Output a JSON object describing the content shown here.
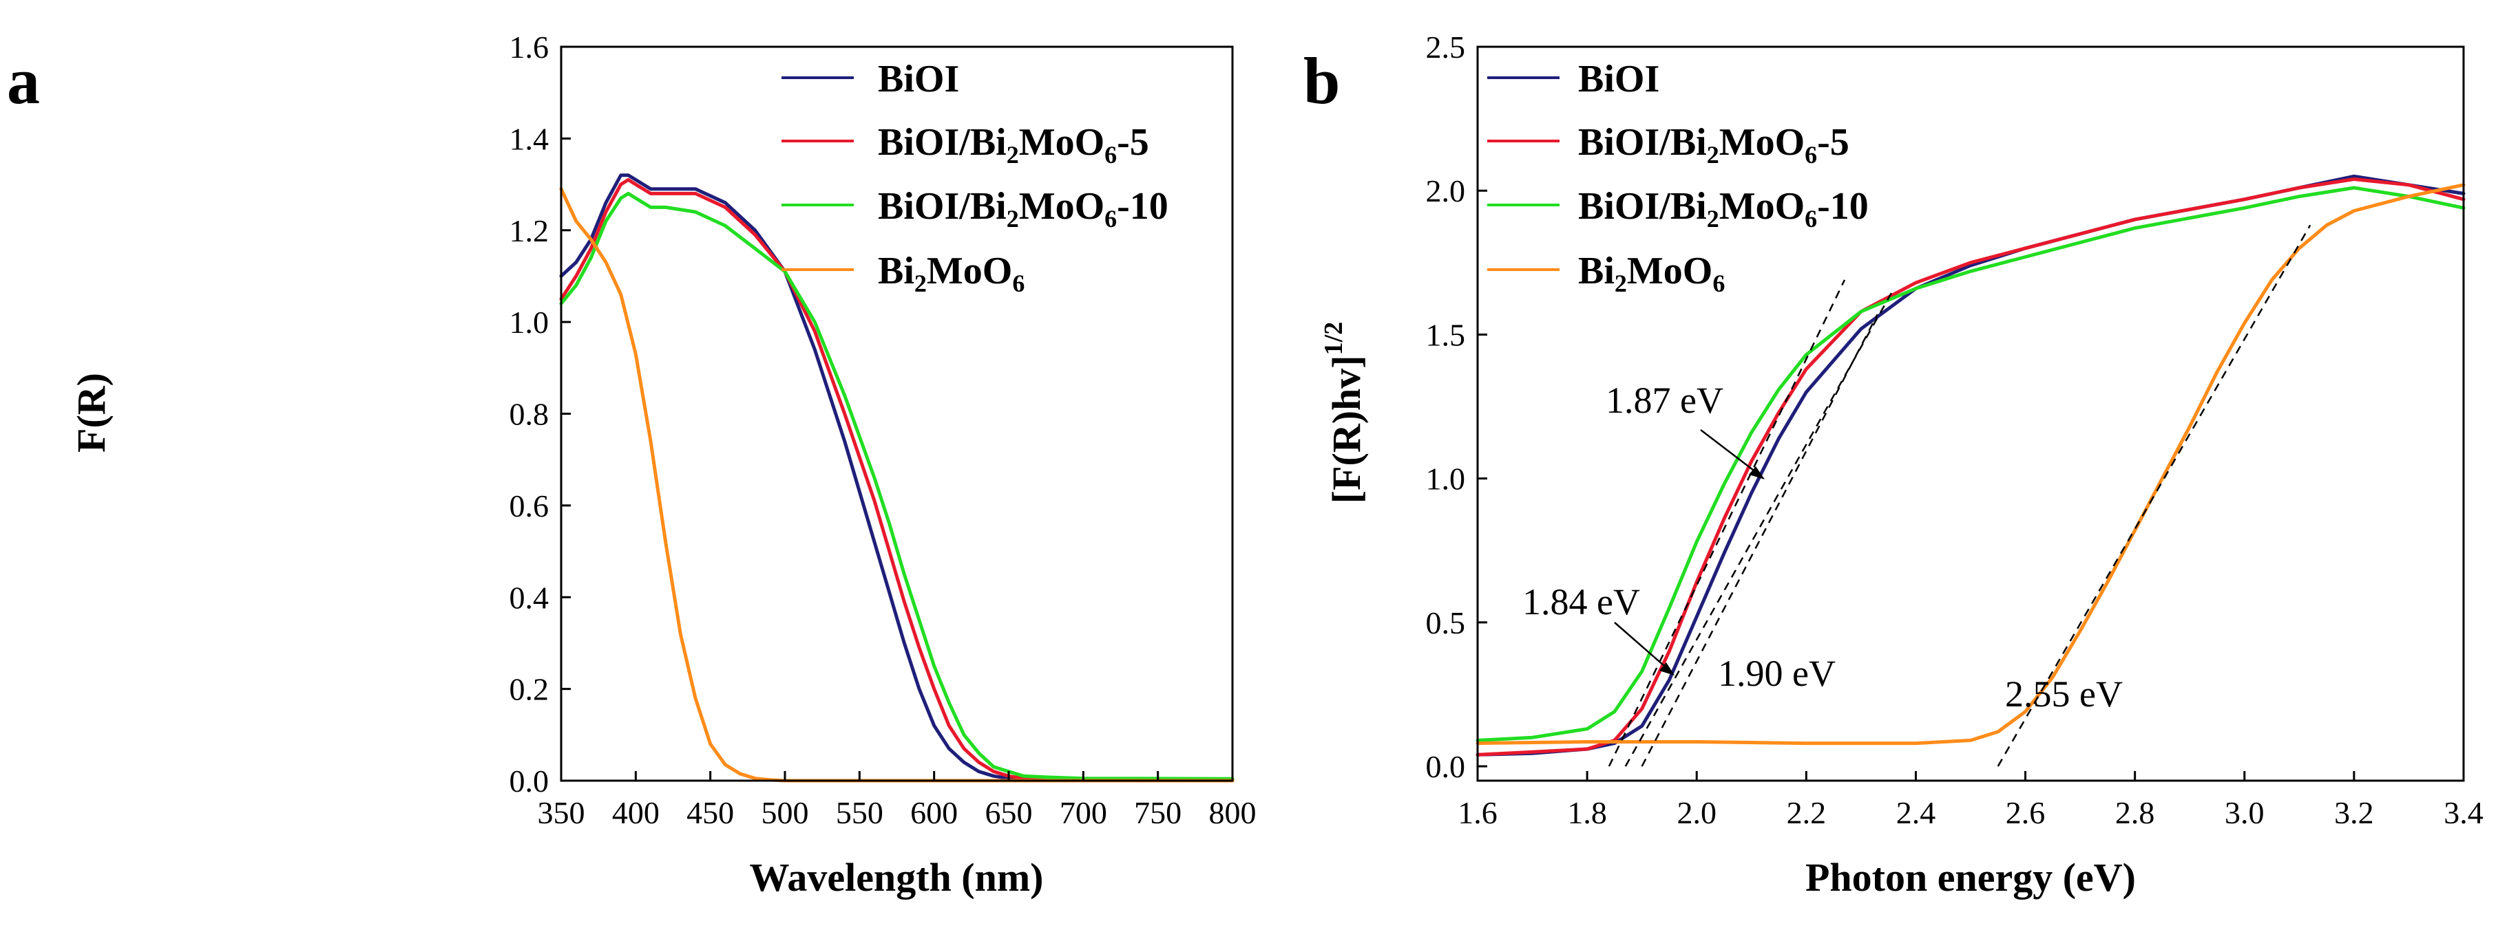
{
  "chart_data": [
    {
      "panel": "a",
      "type": "line",
      "title": "",
      "xlabel": "Wavelength (nm)",
      "ylabel": "F(R)",
      "xlim": [
        350,
        800
      ],
      "ylim": [
        0,
        1.6
      ],
      "xticks": [
        "350",
        "400",
        "450",
        "500",
        "550",
        "600",
        "650",
        "700",
        "750",
        "800"
      ],
      "yticks": [
        "0.0",
        "0.2",
        "0.4",
        "0.6",
        "0.8",
        "1.0",
        "1.2",
        "1.4",
        "1.6"
      ],
      "legend_position": "top-right",
      "series": [
        {
          "name": "BiOI",
          "color": "#1f1f7a",
          "x": [
            350,
            360,
            370,
            380,
            390,
            395,
            400,
            410,
            420,
            440,
            460,
            480,
            500,
            520,
            540,
            560,
            570,
            580,
            590,
            600,
            610,
            620,
            630,
            640,
            650,
            660,
            700,
            800
          ],
          "y": [
            1.1,
            1.13,
            1.18,
            1.26,
            1.32,
            1.32,
            1.31,
            1.29,
            1.29,
            1.29,
            1.26,
            1.2,
            1.11,
            0.94,
            0.74,
            0.52,
            0.41,
            0.3,
            0.2,
            0.12,
            0.07,
            0.04,
            0.02,
            0.01,
            0.005,
            0.003,
            0.002,
            0.002
          ]
        },
        {
          "name": "BiOI/Bi₂MoO₆-5",
          "color": "#e8192c",
          "x": [
            350,
            360,
            370,
            380,
            390,
            395,
            400,
            410,
            420,
            440,
            460,
            480,
            500,
            520,
            540,
            560,
            570,
            580,
            590,
            600,
            610,
            620,
            630,
            640,
            650,
            660,
            700,
            800
          ],
          "y": [
            1.05,
            1.1,
            1.16,
            1.24,
            1.3,
            1.31,
            1.3,
            1.28,
            1.28,
            1.28,
            1.25,
            1.19,
            1.11,
            0.98,
            0.8,
            0.61,
            0.5,
            0.39,
            0.29,
            0.2,
            0.12,
            0.07,
            0.04,
            0.02,
            0.01,
            0.005,
            0.003,
            0.002
          ]
        },
        {
          "name": "BiOI/Bi₂MoO₆-10",
          "color": "#22dd22",
          "x": [
            350,
            360,
            370,
            380,
            390,
            395,
            400,
            410,
            420,
            440,
            460,
            480,
            500,
            520,
            540,
            560,
            570,
            580,
            590,
            600,
            610,
            620,
            630,
            640,
            650,
            660,
            680,
            700,
            800
          ],
          "y": [
            1.04,
            1.08,
            1.14,
            1.22,
            1.27,
            1.28,
            1.27,
            1.25,
            1.25,
            1.24,
            1.21,
            1.16,
            1.11,
            1.0,
            0.84,
            0.66,
            0.56,
            0.45,
            0.35,
            0.25,
            0.17,
            0.1,
            0.06,
            0.03,
            0.02,
            0.01,
            0.007,
            0.005,
            0.004
          ]
        },
        {
          "name": "Bi₂MoO₆",
          "color": "#ff8c1a",
          "x": [
            350,
            360,
            370,
            380,
            390,
            400,
            410,
            420,
            430,
            440,
            450,
            460,
            470,
            480,
            490,
            500,
            550,
            600,
            700,
            800
          ],
          "y": [
            1.29,
            1.22,
            1.18,
            1.13,
            1.06,
            0.93,
            0.74,
            0.52,
            0.32,
            0.18,
            0.08,
            0.035,
            0.015,
            0.005,
            0.002,
            0.0,
            0.0,
            0.0,
            0.0,
            0.0
          ]
        }
      ],
      "legend": [
        "BiOI",
        "BiOI/Bi2MoO6-5",
        "BiOI/Bi2MoO6-10",
        "Bi2MoO6"
      ]
    },
    {
      "panel": "b",
      "type": "line",
      "title": "",
      "xlabel": "Photon energy (eV)",
      "ylabel": "[F(R)hv]^1/2",
      "xlim": [
        1.6,
        3.4
      ],
      "ylim": [
        -0.05,
        2.5
      ],
      "xticks": [
        "1.6",
        "1.8",
        "2.0",
        "2.2",
        "2.4",
        "2.6",
        "2.8",
        "3.0",
        "3.2",
        "3.4"
      ],
      "yticks": [
        "0.0",
        "0.5",
        "1.0",
        "1.5",
        "2.0",
        "2.5"
      ],
      "legend_position": "top-left",
      "series": [
        {
          "name": "BiOI",
          "color": "#1f1f7a",
          "x": [
            1.6,
            1.7,
            1.8,
            1.85,
            1.9,
            1.95,
            2.0,
            2.05,
            2.1,
            2.15,
            2.2,
            2.3,
            2.4,
            2.5,
            2.6,
            2.8,
            3.0,
            3.1,
            3.2,
            3.3,
            3.4
          ],
          "y": [
            0.04,
            0.045,
            0.06,
            0.08,
            0.14,
            0.3,
            0.52,
            0.74,
            0.95,
            1.14,
            1.3,
            1.52,
            1.66,
            1.74,
            1.8,
            1.9,
            1.97,
            2.01,
            2.05,
            2.02,
            1.99
          ]
        },
        {
          "name": "BiOI/Bi₂MoO₆-5",
          "color": "#e8192c",
          "x": [
            1.6,
            1.7,
            1.8,
            1.85,
            1.9,
            1.95,
            2.0,
            2.05,
            2.1,
            2.15,
            2.2,
            2.3,
            2.4,
            2.5,
            2.6,
            2.8,
            3.0,
            3.1,
            3.2,
            3.3,
            3.4
          ],
          "y": [
            0.04,
            0.05,
            0.06,
            0.09,
            0.2,
            0.4,
            0.64,
            0.86,
            1.06,
            1.23,
            1.38,
            1.58,
            1.68,
            1.75,
            1.8,
            1.9,
            1.97,
            2.01,
            2.04,
            2.02,
            1.97
          ]
        },
        {
          "name": "BiOI/Bi₂MoO₆-10",
          "color": "#22dd22",
          "x": [
            1.6,
            1.7,
            1.8,
            1.85,
            1.9,
            1.95,
            2.0,
            2.05,
            2.1,
            2.15,
            2.2,
            2.3,
            2.4,
            2.5,
            2.6,
            2.8,
            3.0,
            3.1,
            3.2,
            3.3,
            3.4
          ],
          "y": [
            0.09,
            0.1,
            0.13,
            0.19,
            0.33,
            0.55,
            0.78,
            0.98,
            1.16,
            1.31,
            1.43,
            1.58,
            1.66,
            1.72,
            1.77,
            1.87,
            1.94,
            1.98,
            2.01,
            1.98,
            1.94
          ]
        },
        {
          "name": "Bi₂MoO₆",
          "color": "#ff8c1a",
          "x": [
            1.6,
            1.8,
            2.0,
            2.2,
            2.4,
            2.5,
            2.55,
            2.6,
            2.65,
            2.7,
            2.75,
            2.8,
            2.85,
            2.9,
            2.95,
            3.0,
            3.05,
            3.1,
            3.15,
            3.2,
            3.3,
            3.4
          ],
          "y": [
            0.08,
            0.085,
            0.085,
            0.08,
            0.08,
            0.09,
            0.12,
            0.19,
            0.31,
            0.47,
            0.64,
            0.82,
            1.0,
            1.18,
            1.37,
            1.54,
            1.69,
            1.8,
            1.88,
            1.93,
            1.98,
            2.02
          ]
        }
      ],
      "tangents": [
        {
          "x": [
            1.84,
            2.27
          ],
          "y": [
            0.0,
            1.69
          ]
        },
        {
          "x": [
            1.87,
            2.36
          ],
          "y": [
            0.0,
            1.66
          ]
        },
        {
          "x": [
            1.9,
            2.33
          ],
          "y": [
            0.0,
            1.57
          ]
        },
        {
          "x": [
            2.55,
            3.12
          ],
          "y": [
            0.0,
            1.88
          ]
        }
      ],
      "annotations": [
        {
          "text": "1.87 eV",
          "x": 2.08,
          "y": 1.18
        },
        {
          "text": "1.84 eV",
          "x": 1.69,
          "y": 0.56
        },
        {
          "text": "1.90 eV",
          "x": 1.97,
          "y": 0.29
        },
        {
          "text": "2.55 eV",
          "x": 2.68,
          "y": 0.21
        }
      ],
      "legend": [
        "BiOI",
        "BiOI/Bi2MoO6-5",
        "BiOI/Bi2MoO6-10",
        "Bi2MoO6"
      ]
    }
  ],
  "labels": {
    "panel_a": "a",
    "panel_b": "b",
    "sub2": "2",
    "sub6": "6",
    "bi": "Bi",
    "biOI": "BiOI",
    "biOI_bi": "BiOI/Bi",
    "moO": "MoO",
    "suffix5": "-5",
    "suffix10": "-10",
    "ylabel_b_main": "[F(R)hv]",
    "ylabel_b_exp": "1/2"
  }
}
